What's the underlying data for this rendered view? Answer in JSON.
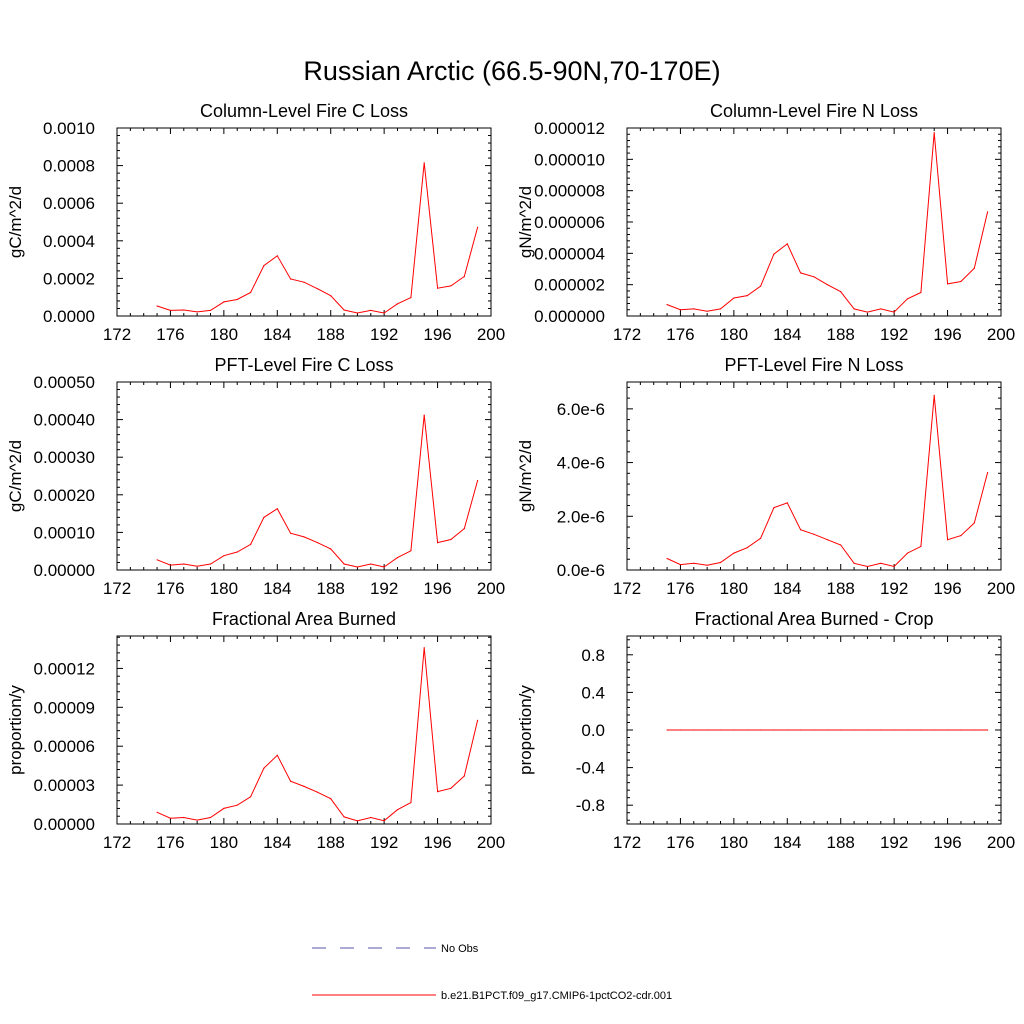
{
  "figure": {
    "title": "Russian Arctic (66.5-90N,70-170E)"
  },
  "legend": {
    "entries": [
      {
        "label": "No Obs",
        "color": "#5555aa",
        "dash": "dashed"
      },
      {
        "label": "b.e21.B1PCT.f09_g17.CMIP6-1pctCO2-cdr.001",
        "color": "#ff0000",
        "dash": "solid"
      }
    ]
  },
  "chart_data": [
    {
      "type": "line",
      "title": "Column-Level Fire C Loss",
      "ylabel": "gC/m^2/d",
      "xlabel": "",
      "xlim": [
        172,
        200
      ],
      "ylim": [
        0,
        0.001
      ],
      "xticks": [
        172,
        176,
        180,
        184,
        188,
        192,
        196,
        200
      ],
      "xtick_labels": [
        "172",
        "176",
        "180",
        "184",
        "188",
        "192",
        "196",
        "200"
      ],
      "yticks": [
        0,
        0.0002,
        0.0004,
        0.0006,
        0.0008,
        0.001
      ],
      "ytick_labels": [
        "0.0000",
        "0.0002",
        "0.0004",
        "0.0006",
        "0.0008",
        "0.0010"
      ],
      "series": [
        {
          "name": "b.e21.B1PCT.f09_g17.CMIP6-1pctCO2-cdr.001",
          "color": "#ff0000",
          "x": [
            175,
            176,
            177,
            178,
            179,
            180,
            181,
            182,
            183,
            184,
            185,
            186,
            187,
            188,
            189,
            190,
            191,
            192,
            193,
            194,
            195,
            196,
            197,
            198,
            199
          ],
          "y": [
            5.3e-05,
            3e-05,
            3.2e-05,
            2.2e-05,
            3e-05,
            7.5e-05,
            8.8e-05,
            0.000125,
            0.000268,
            0.00032,
            0.000197,
            0.00018,
            0.000145,
            0.000108,
            3.2e-05,
            1.6e-05,
            3e-05,
            1.6e-05,
            6.5e-05,
            9.8e-05,
            0.000815,
            0.000148,
            0.00016,
            0.00021,
            0.000472
          ]
        }
      ]
    },
    {
      "type": "line",
      "title": "Column-Level Fire N Loss",
      "ylabel": "gN/m^2/d",
      "xlabel": "",
      "xlim": [
        172,
        200
      ],
      "ylim": [
        0,
        1.2e-05
      ],
      "xticks": [
        172,
        176,
        180,
        184,
        188,
        192,
        196,
        200
      ],
      "xtick_labels": [
        "172",
        "176",
        "180",
        "184",
        "188",
        "192",
        "196",
        "200"
      ],
      "yticks": [
        0,
        2e-06,
        4e-06,
        6e-06,
        8e-06,
        1e-05,
        1.2e-05
      ],
      "ytick_labels": [
        "0.000000",
        "0.000002",
        "0.000004",
        "0.000006",
        "0.000008",
        "0.000010",
        "0.000012"
      ],
      "series": [
        {
          "name": "b.e21.B1PCT.f09_g17.CMIP6-1pctCO2-cdr.001",
          "color": "#ff0000",
          "x": [
            175,
            176,
            177,
            178,
            179,
            180,
            181,
            182,
            183,
            184,
            185,
            186,
            187,
            188,
            189,
            190,
            191,
            192,
            193,
            194,
            195,
            196,
            197,
            198,
            199
          ],
          "y": [
            7.3e-07,
            4e-07,
            4.5e-07,
            3e-07,
            4.5e-07,
            1.15e-06,
            1.3e-06,
            1.9e-06,
            3.95e-06,
            4.6e-06,
            2.75e-06,
            2.5e-06,
            2e-06,
            1.55e-06,
            4.5e-07,
            2.5e-07,
            4.5e-07,
            2.5e-07,
            1.1e-06,
            1.5e-06,
            1.17e-05,
            2.05e-06,
            2.2e-06,
            3.05e-06,
            6.65e-06
          ]
        }
      ]
    },
    {
      "type": "line",
      "title": "PFT-Level Fire C Loss",
      "ylabel": "gC/m^2/d",
      "xlabel": "",
      "xlim": [
        172,
        200
      ],
      "ylim": [
        0,
        0.0005
      ],
      "xticks": [
        172,
        176,
        180,
        184,
        188,
        192,
        196,
        200
      ],
      "xtick_labels": [
        "172",
        "176",
        "180",
        "184",
        "188",
        "192",
        "196",
        "200"
      ],
      "yticks": [
        0,
        0.0001,
        0.0002,
        0.0003,
        0.0004,
        0.0005
      ],
      "ytick_labels": [
        "0.00000",
        "0.00010",
        "0.00020",
        "0.00030",
        "0.00040",
        "0.00050"
      ],
      "series": [
        {
          "name": "b.e21.B1PCT.f09_g17.CMIP6-1pctCO2-cdr.001",
          "color": "#ff0000",
          "x": [
            175,
            176,
            177,
            178,
            179,
            180,
            181,
            182,
            183,
            184,
            185,
            186,
            187,
            188,
            189,
            190,
            191,
            192,
            193,
            194,
            195,
            196,
            197,
            198,
            199
          ],
          "y": [
            2.7e-05,
            1.3e-05,
            1.6e-05,
            1e-05,
            1.6e-05,
            3.8e-05,
            4.8e-05,
            6.8e-05,
            0.00014,
            0.000163,
            9.8e-05,
            8.8e-05,
            7.3e-05,
            5.6e-05,
            1.6e-05,
            8e-06,
            1.6e-05,
            8e-06,
            3.3e-05,
            5.1e-05,
            0.000412,
            7.3e-05,
            8.1e-05,
            0.00011,
            0.000238
          ]
        }
      ]
    },
    {
      "type": "line",
      "title": "PFT-Level Fire N Loss",
      "ylabel": "gN/m^2/d",
      "xlabel": "",
      "xlim": [
        172,
        200
      ],
      "ylim": [
        0,
        7e-06
      ],
      "xticks": [
        172,
        176,
        180,
        184,
        188,
        192,
        196,
        200
      ],
      "xtick_labels": [
        "172",
        "176",
        "180",
        "184",
        "188",
        "192",
        "196",
        "200"
      ],
      "yticks": [
        0,
        2e-06,
        4e-06,
        6e-06
      ],
      "ytick_labels": [
        "0.0e-6",
        "2.0e-6",
        "4.0e-6",
        "6.0e-6"
      ],
      "series": [
        {
          "name": "b.e21.B1PCT.f09_g17.CMIP6-1pctCO2-cdr.001",
          "color": "#ff0000",
          "x": [
            175,
            176,
            177,
            178,
            179,
            180,
            181,
            182,
            183,
            184,
            185,
            186,
            187,
            188,
            189,
            190,
            191,
            192,
            193,
            194,
            195,
            196,
            197,
            198,
            199
          ],
          "y": [
            4.3e-07,
            2e-07,
            2.5e-07,
            1.8e-07,
            2.8e-07,
            6.3e-07,
            8.3e-07,
            1.18e-06,
            2.32e-06,
            2.5e-06,
            1.5e-06,
            1.33e-06,
            1.13e-06,
            9.3e-07,
            2.5e-07,
            1.3e-07,
            2.5e-07,
            1.3e-07,
            6.3e-07,
            8.8e-07,
            6.5e-06,
            1.13e-06,
            1.28e-06,
            1.75e-06,
            3.63e-06
          ]
        }
      ]
    },
    {
      "type": "line",
      "title": "Fractional Area Burned",
      "ylabel": "proportion/y",
      "xlabel": "",
      "xlim": [
        172,
        200
      ],
      "ylim": [
        0,
        0.000145
      ],
      "xticks": [
        172,
        176,
        180,
        184,
        188,
        192,
        196,
        200
      ],
      "xtick_labels": [
        "172",
        "176",
        "180",
        "184",
        "188",
        "192",
        "196",
        "200"
      ],
      "yticks": [
        0,
        3e-05,
        6e-05,
        9e-05,
        0.00012
      ],
      "ytick_labels": [
        "0.00000",
        "0.00003",
        "0.00006",
        "0.00009",
        "0.00012"
      ],
      "series": [
        {
          "name": "b.e21.B1PCT.f09_g17.CMIP6-1pctCO2-cdr.001",
          "color": "#ff0000",
          "x": [
            175,
            176,
            177,
            178,
            179,
            180,
            181,
            182,
            183,
            184,
            185,
            186,
            187,
            188,
            189,
            190,
            191,
            192,
            193,
            194,
            195,
            196,
            197,
            198,
            199
          ],
          "y": [
            9e-06,
            4.5e-06,
            5e-06,
            3e-06,
            5e-06,
            1.2e-05,
            1.45e-05,
            2.1e-05,
            4.3e-05,
            5.3e-05,
            3.3e-05,
            2.9e-05,
            2.45e-05,
            1.95e-05,
            5.5e-06,
            2.5e-06,
            5e-06,
            2.5e-06,
            1.1e-05,
            1.65e-05,
            0.000136,
            2.5e-05,
            2.75e-05,
            3.7e-05,
            8e-05
          ]
        }
      ]
    },
    {
      "type": "line",
      "title": "Fractional Area Burned - Crop",
      "ylabel": "proportion/y",
      "xlabel": "",
      "xlim": [
        172,
        200
      ],
      "ylim": [
        -1,
        1
      ],
      "xticks": [
        172,
        176,
        180,
        184,
        188,
        192,
        196,
        200
      ],
      "xtick_labels": [
        "172",
        "176",
        "180",
        "184",
        "188",
        "192",
        "196",
        "200"
      ],
      "yticks": [
        -0.8,
        -0.4,
        0,
        0.4,
        0.8
      ],
      "ytick_labels": [
        "-0.8",
        "-0.4",
        "0.0",
        "0.4",
        "0.8"
      ],
      "series": [
        {
          "name": "b.e21.B1PCT.f09_g17.CMIP6-1pctCO2-cdr.001",
          "color": "#ff0000",
          "x": [
            175,
            176,
            177,
            178,
            179,
            180,
            181,
            182,
            183,
            184,
            185,
            186,
            187,
            188,
            189,
            190,
            191,
            192,
            193,
            194,
            195,
            196,
            197,
            198,
            199
          ],
          "y": [
            0,
            0,
            0,
            0,
            0,
            0,
            0,
            0,
            0,
            0,
            0,
            0,
            0,
            0,
            0,
            0,
            0,
            0,
            0,
            0,
            0,
            0,
            0,
            0,
            0
          ]
        }
      ]
    }
  ]
}
